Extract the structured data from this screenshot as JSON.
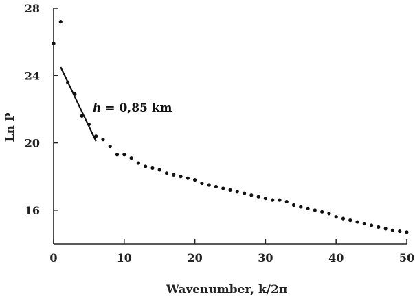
{
  "chart_data": {
    "type": "scatter",
    "title": "",
    "xlabel": "Wavenumber, k/2π",
    "ylabel": "Ln P",
    "xlim": [
      0,
      50
    ],
    "ylim": [
      14,
      28
    ],
    "xticks": [
      0,
      10,
      20,
      30,
      40,
      50
    ],
    "yticks": [
      16,
      20,
      24,
      28
    ],
    "xtick_labels": [
      "0",
      "10",
      "20",
      "30",
      "40",
      "50"
    ],
    "ytick_labels": [
      "16",
      "20",
      "24",
      "28"
    ],
    "grid": false,
    "series": [
      {
        "points": [
          {
            "x": 0,
            "y": 25.9
          },
          {
            "x": 1,
            "y": 27.2
          },
          {
            "x": 2,
            "y": 23.6
          },
          {
            "x": 3,
            "y": 22.9
          },
          {
            "x": 4,
            "y": 21.6
          },
          {
            "x": 5,
            "y": 21.1
          },
          {
            "x": 6,
            "y": 20.4
          },
          {
            "x": 7,
            "y": 20.2
          },
          {
            "x": 8,
            "y": 19.8
          },
          {
            "x": 9,
            "y": 19.3
          },
          {
            "x": 10,
            "y": 19.3
          },
          {
            "x": 11,
            "y": 19.1
          },
          {
            "x": 12,
            "y": 18.8
          },
          {
            "x": 13,
            "y": 18.6
          },
          {
            "x": 14,
            "y": 18.5
          },
          {
            "x": 15,
            "y": 18.4
          },
          {
            "x": 16,
            "y": 18.2
          },
          {
            "x": 17,
            "y": 18.1
          },
          {
            "x": 18,
            "y": 18.0
          },
          {
            "x": 19,
            "y": 17.9
          },
          {
            "x": 20,
            "y": 17.8
          },
          {
            "x": 21,
            "y": 17.6
          },
          {
            "x": 22,
            "y": 17.5
          },
          {
            "x": 23,
            "y": 17.4
          },
          {
            "x": 24,
            "y": 17.3
          },
          {
            "x": 25,
            "y": 17.2
          },
          {
            "x": 26,
            "y": 17.1
          },
          {
            "x": 27,
            "y": 17.0
          },
          {
            "x": 28,
            "y": 16.9
          },
          {
            "x": 29,
            "y": 16.8
          },
          {
            "x": 30,
            "y": 16.7
          },
          {
            "x": 31,
            "y": 16.6
          },
          {
            "x": 32,
            "y": 16.6
          },
          {
            "x": 33,
            "y": 16.5
          },
          {
            "x": 34,
            "y": 16.3
          },
          {
            "x": 35,
            "y": 16.2
          },
          {
            "x": 36,
            "y": 16.1
          },
          {
            "x": 37,
            "y": 16.0
          },
          {
            "x": 38,
            "y": 15.9
          },
          {
            "x": 39,
            "y": 15.8
          },
          {
            "x": 40,
            "y": 15.6
          },
          {
            "x": 41,
            "y": 15.5
          },
          {
            "x": 42,
            "y": 15.4
          },
          {
            "x": 43,
            "y": 15.3
          },
          {
            "x": 44,
            "y": 15.2
          },
          {
            "x": 45,
            "y": 15.1
          },
          {
            "x": 46,
            "y": 15.0
          },
          {
            "x": 47,
            "y": 14.9
          },
          {
            "x": 48,
            "y": 14.8
          },
          {
            "x": 49,
            "y": 14.75
          },
          {
            "x": 50,
            "y": 14.7
          }
        ]
      }
    ],
    "fit_line": {
      "x": [
        1,
        6
      ],
      "y": [
        24.5,
        20.1
      ]
    },
    "annotation": {
      "prefix": "h",
      "text": " = 0,85 km"
    }
  }
}
